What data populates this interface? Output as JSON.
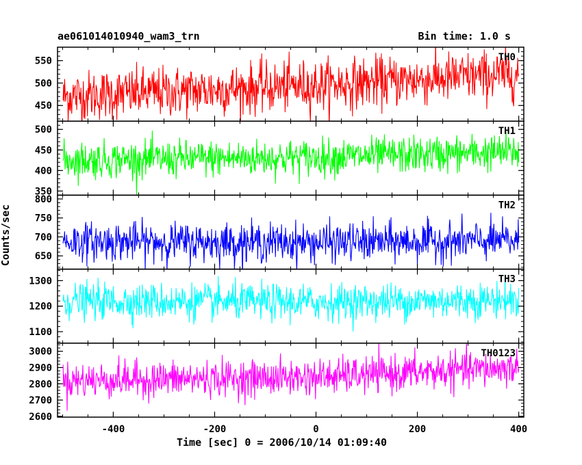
{
  "header": {
    "title": "ae061014010940_wam3_trn",
    "bin_time": "Bin time: 1.0 s"
  },
  "chart_data": {
    "type": "line",
    "xlabel": "Time [sec] 0 = 2006/10/14 01:09:40",
    "ylabel": "Counts/sec",
    "xlim": [
      -510,
      410
    ],
    "x_ticks": [
      -400,
      -200,
      0,
      200,
      400
    ],
    "x_range": [
      -499,
      400
    ],
    "panels": [
      {
        "name": "TH0",
        "color": "#ff0000",
        "ylim": [
          415,
          580
        ],
        "y_ticks": [
          450,
          500,
          550
        ],
        "trend": [
          [
            -499,
            470
          ],
          [
            0,
            495
          ],
          [
            400,
            520
          ]
        ],
        "noise": 28,
        "clip": true
      },
      {
        "name": "TH1",
        "color": "#00ff00",
        "ylim": [
          340,
          520
        ],
        "y_ticks": [
          350,
          400,
          450,
          500
        ],
        "trend": [
          [
            -499,
            425
          ],
          [
            0,
            432
          ],
          [
            400,
            445
          ]
        ],
        "noise": 22,
        "clip": false
      },
      {
        "name": "TH2",
        "color": "#0000ff",
        "ylim": [
          615,
          810
        ],
        "y_ticks": [
          650,
          700,
          750,
          800
        ],
        "trend": [
          [
            -499,
            688
          ],
          [
            0,
            685
          ],
          [
            400,
            690
          ]
        ],
        "noise": 25,
        "clip": false
      },
      {
        "name": "TH3",
        "color": "#00ffff",
        "ylim": [
          1055,
          1345
        ],
        "y_ticks": [
          1100,
          1200,
          1300
        ],
        "trend": [
          [
            -499,
            1220
          ],
          [
            0,
            1215
          ],
          [
            400,
            1225
          ]
        ],
        "noise": 35,
        "clip": true
      },
      {
        "name": "TH0123",
        "color": "#ff00ff",
        "ylim": [
          2595,
          3050
        ],
        "y_ticks": [
          2600,
          2700,
          2800,
          2900,
          3000
        ],
        "trend": [
          [
            -499,
            2820
          ],
          [
            0,
            2840
          ],
          [
            400,
            2900
          ]
        ],
        "noise": 55,
        "clip": false
      }
    ]
  }
}
